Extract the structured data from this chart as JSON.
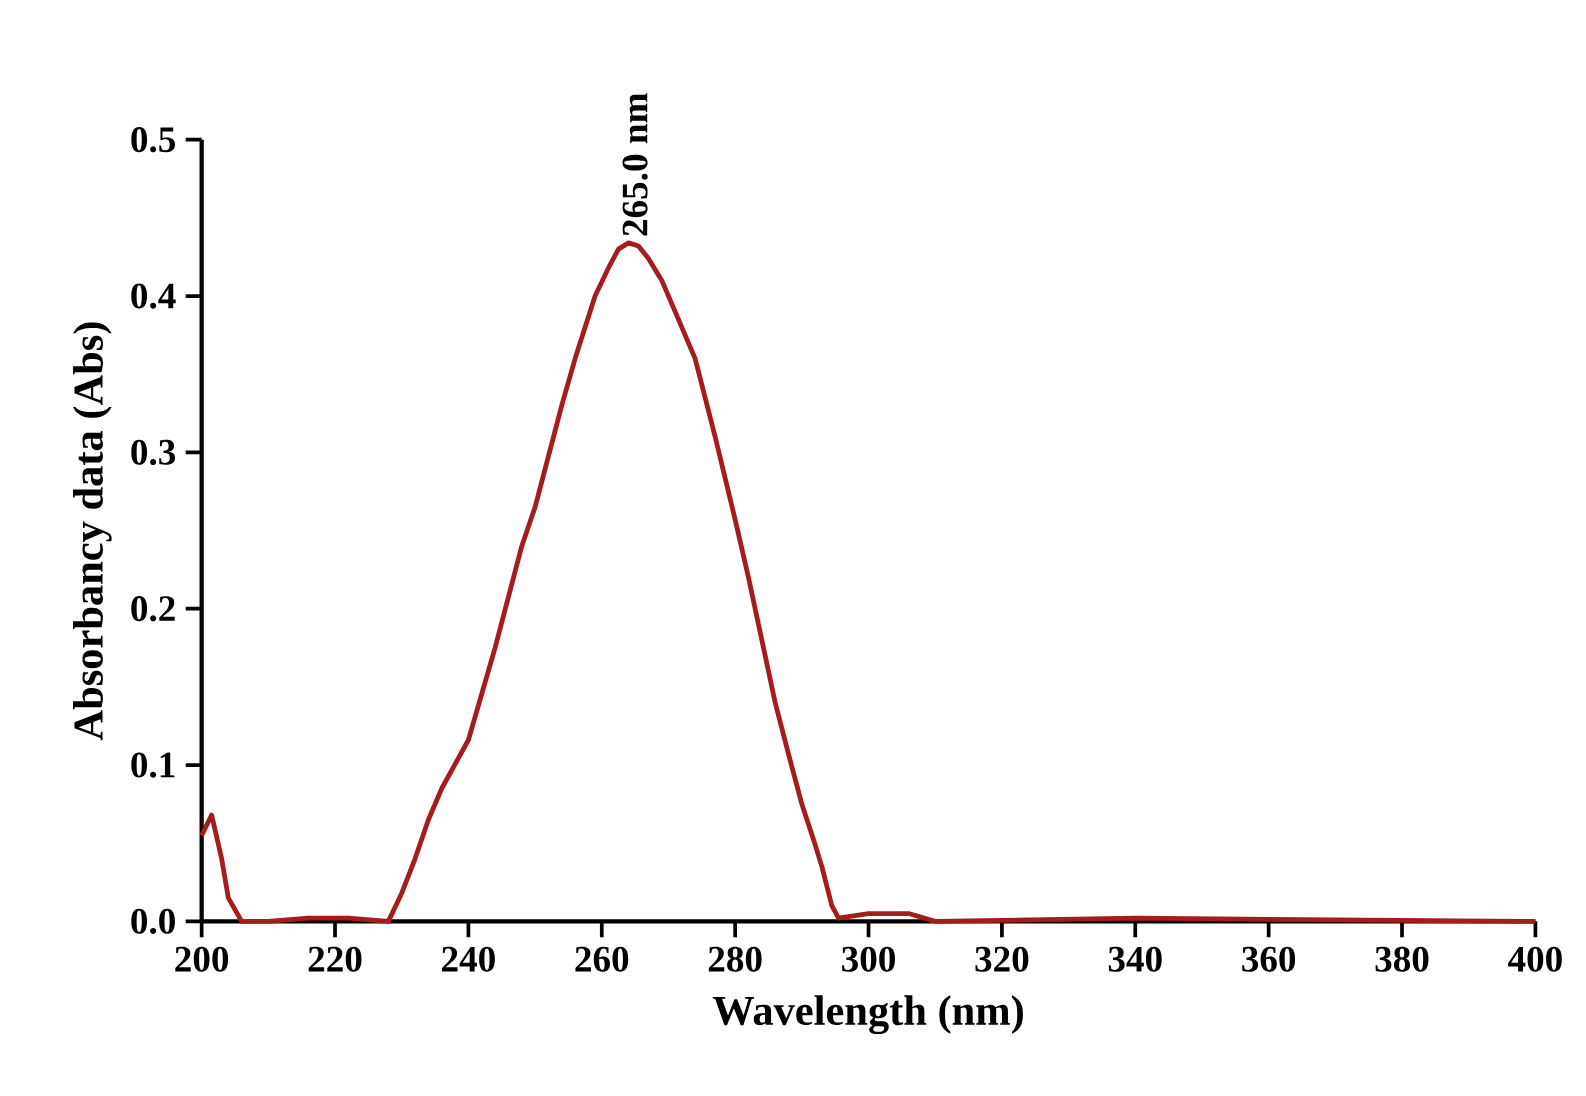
{
  "chart_data": {
    "type": "line",
    "xlabel": "Wavelength (nm)",
    "ylabel": "Absorbancy data (Abs)",
    "annotations": [
      {
        "text": "265.0 nm",
        "x": 265,
        "y": 0.434
      }
    ],
    "xlim": [
      200,
      400
    ],
    "ylim": [
      0,
      0.5
    ],
    "xticks": [
      200,
      220,
      240,
      260,
      280,
      300,
      320,
      340,
      360,
      380,
      400
    ],
    "yticks": [
      {
        "value": 0,
        "label": "0.0"
      },
      0.1,
      0.2,
      0.3,
      0.4,
      0.5
    ],
    "grid": false,
    "marker": "none",
    "line_style": "solid",
    "series": [
      {
        "color": "#a51c1c",
        "x": [
          200,
          201.5,
          203,
          204,
          206,
          210,
          216,
          222,
          228,
          230,
          232,
          234,
          236,
          240,
          244,
          248,
          250,
          254,
          256,
          259,
          261,
          262.5,
          264,
          265.5,
          267,
          269,
          271,
          274,
          277,
          280,
          282,
          284,
          286,
          288,
          290,
          292,
          293,
          294.5,
          295.5,
          300,
          306,
          310,
          340,
          400
        ],
        "values": [
          0.055,
          0.068,
          0.04,
          0.015,
          0,
          0,
          0.002,
          0.002,
          0,
          0.018,
          0.04,
          0.065,
          0.085,
          0.116,
          0.175,
          0.24,
          0.265,
          0.33,
          0.36,
          0.4,
          0.418,
          0.43,
          0.434,
          0.432,
          0.424,
          0.41,
          0.39,
          0.36,
          0.31,
          0.257,
          0.22,
          0.18,
          0.14,
          0.107,
          0.075,
          0.049,
          0.035,
          0.01,
          0.002,
          0.005,
          0.005,
          0,
          0.002,
          0
        ]
      }
    ]
  }
}
